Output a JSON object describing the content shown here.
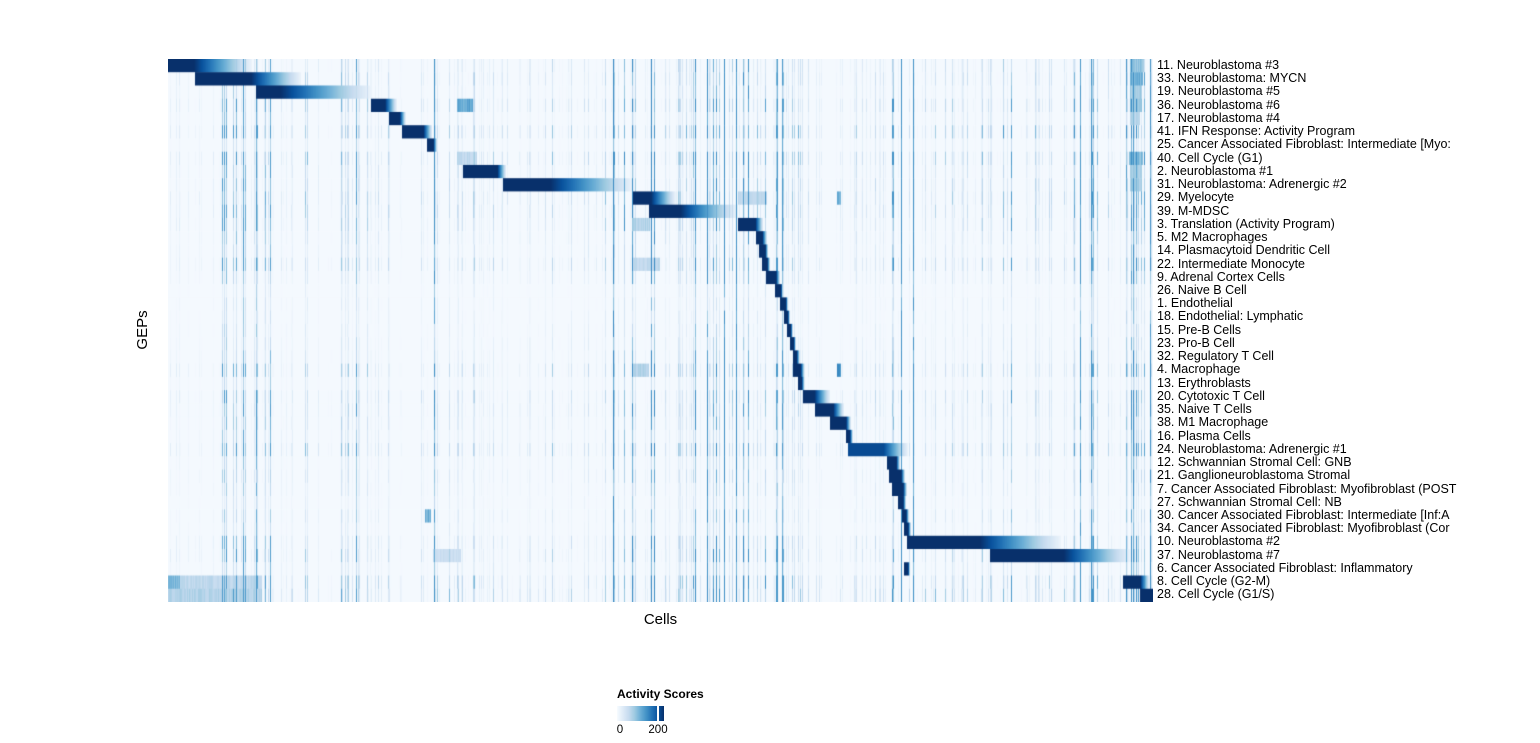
{
  "figure": {
    "y_axis_label": "GEPs",
    "x_axis_label": "Cells",
    "legend": {
      "title": "Activity Scores",
      "min_label": "0",
      "max_label": "200"
    }
  },
  "chart_data": {
    "type": "heatmap",
    "title": "",
    "xlabel": "Cells",
    "ylabel": "GEPs",
    "legend_title": "Activity Scores",
    "value_range": [
      0,
      200
    ],
    "legend_tick_values": [
      "0",
      "200"
    ],
    "n_rows": 41,
    "colormap": "Blues (white to dark navy)",
    "color_min": "#f7fbff",
    "color_max": "#08306b",
    "color_stops": [
      "#f7fbff",
      "#deebf7",
      "#c6dbef",
      "#9ecae1",
      "#6baed6",
      "#4292c6",
      "#2171b5",
      "#08519c",
      "#08306b"
    ],
    "description": "Cells (columns) sorted by assigned gene expression program; each GEP row shows a dark activity block along the diagonal. block = [start, dark_end, fade_end] fractions of x-axis; peak activity ~200+.",
    "noise_hotspots": [
      [
        0.05,
        0.06,
        0.8
      ],
      [
        0.155,
        0.04,
        0.6
      ],
      [
        0.268,
        0.006,
        1.6
      ],
      [
        0.375,
        0.005,
        1.2
      ],
      [
        0.448,
        0.05,
        2.0
      ],
      [
        0.53,
        0.08,
        1.7
      ],
      [
        0.607,
        0.02,
        1.0
      ],
      [
        0.678,
        0.008,
        2.0
      ],
      [
        0.728,
        0.03,
        1.5
      ],
      [
        0.84,
        0.02,
        0.9
      ],
      [
        0.91,
        0.035,
        1.3
      ],
      [
        0.973,
        0.025,
        1.7
      ]
    ],
    "rows": [
      {
        "label": "11. Neuroblastoma #3",
        "block": [
          0.0,
          0.026,
          0.085
        ],
        "noise": 0.7,
        "extras": [
          [
            0.976,
            0.014,
            0.45
          ]
        ]
      },
      {
        "label": "33. Neuroblastoma: MYCN",
        "block": [
          0.027,
          0.084,
          0.135
        ],
        "noise": 0.8,
        "extras": [
          [
            0.976,
            0.013,
            0.55
          ]
        ]
      },
      {
        "label": "19. Neuroblastoma #5",
        "block": [
          0.089,
          0.114,
          0.206
        ],
        "noise": 0.6,
        "extras": [
          [
            0.976,
            0.012,
            0.4
          ]
        ]
      },
      {
        "label": "36. Neuroblastoma #6",
        "block": [
          0.206,
          0.22,
          0.232
        ],
        "noise": 1.0,
        "extras": [
          [
            0.293,
            0.016,
            0.6
          ],
          [
            0.976,
            0.012,
            0.45
          ]
        ]
      },
      {
        "label": "17. Neuroblastoma #4",
        "block": [
          0.224,
          0.235,
          0.241
        ],
        "noise": 0.5,
        "extras": [
          [
            0.976,
            0.01,
            0.35
          ]
        ]
      },
      {
        "label": "41. IFN Response: Activity Program",
        "block": [
          0.237,
          0.259,
          0.268
        ],
        "noise": 1.2
      },
      {
        "label": "25. Cancer Associated Fibroblast: Intermediate [Myo:",
        "block": [
          0.262,
          0.269,
          0.273
        ],
        "noise": 0.4
      },
      {
        "label": "40. Cell Cycle (G1)",
        "block": null,
        "noise": 1.1,
        "extras": [
          [
            0.293,
            0.02,
            0.3
          ],
          [
            0.975,
            0.014,
            0.5
          ]
        ]
      },
      {
        "label": "2. Neuroblastoma #1",
        "block": [
          0.299,
          0.334,
          0.343
        ],
        "noise": 0.7,
        "extras": [
          [
            0.976,
            0.012,
            0.4
          ]
        ]
      },
      {
        "label": "31. Neuroblastoma: Adrenergic #2",
        "block": [
          0.34,
          0.388,
          0.472
        ],
        "noise": 0.8,
        "extras": [
          [
            0.976,
            0.012,
            0.4
          ]
        ]
      },
      {
        "label": "29. Myelocyte",
        "block": [
          0.472,
          0.49,
          0.515
        ],
        "noise": 1.0,
        "extras": [
          [
            0.578,
            0.03,
            0.3
          ],
          [
            0.679,
            0.004,
            0.6
          ]
        ]
      },
      {
        "label": "39. M-MDSC",
        "block": [
          0.488,
          0.52,
          0.578
        ],
        "noise": 0.9
      },
      {
        "label": "3. Translation (Activity Program)",
        "block": [
          0.578,
          0.596,
          0.604
        ],
        "noise": 0.8,
        "extras": [
          [
            0.472,
            0.017,
            0.35
          ]
        ]
      },
      {
        "label": "5. M2 Macrophages",
        "block": [
          0.596,
          0.603,
          0.608
        ],
        "noise": 0.6
      },
      {
        "label": "14. Plasmacytoid Dendritic Cell",
        "block": [
          0.6,
          0.606,
          0.609
        ],
        "noise": 0.5
      },
      {
        "label": "22. Intermediate Monocyte",
        "block": [
          0.603,
          0.608,
          0.611
        ],
        "noise": 0.9,
        "extras": [
          [
            0.472,
            0.027,
            0.3
          ]
        ]
      },
      {
        "label": "9. Adrenal Cortex Cells",
        "block": [
          0.607,
          0.617,
          0.621
        ],
        "noise": 0.5
      },
      {
        "label": "26. Naive B Cell",
        "block": [
          0.616,
          0.622,
          0.624
        ],
        "noise": 0.25
      },
      {
        "label": "1. Endothelial",
        "block": [
          0.621,
          0.627,
          0.629
        ],
        "noise": 0.3
      },
      {
        "label": "18. Endothelial: Lymphatic",
        "block": [
          0.625,
          0.629,
          0.631
        ],
        "noise": 0.3
      },
      {
        "label": "15. Pre-B Cells",
        "block": [
          0.628,
          0.632,
          0.634
        ],
        "noise": 0.35
      },
      {
        "label": "23. Pro-B Cell",
        "block": [
          0.631,
          0.635,
          0.637
        ],
        "noise": 0.4
      },
      {
        "label": "32. Regulatory T Cell",
        "block": [
          0.634,
          0.638,
          0.641
        ],
        "noise": 0.45
      },
      {
        "label": "4. Macrophage",
        "block": [
          0.634,
          0.642,
          0.646
        ],
        "noise": 0.9,
        "extras": [
          [
            0.472,
            0.016,
            0.35
          ],
          [
            0.679,
            0.004,
            0.7
          ]
        ]
      },
      {
        "label": "13. Erythroblasts",
        "block": [
          0.639,
          0.643,
          0.646
        ],
        "noise": 0.35
      },
      {
        "label": "20. Cytotoxic T Cell",
        "block": [
          0.644,
          0.656,
          0.672
        ],
        "noise": 0.8
      },
      {
        "label": "35. Naive T Cells",
        "block": [
          0.656,
          0.675,
          0.686
        ],
        "noise": 0.7
      },
      {
        "label": "38. M1 Macrophage",
        "block": [
          0.672,
          0.688,
          0.693
        ],
        "noise": 0.6
      },
      {
        "label": "16. Plasma Cells",
        "block": [
          0.688,
          0.692,
          0.695
        ],
        "noise": 0.5
      },
      {
        "label": "24. Neuroblastoma: Adrenergic #1",
        "block": [
          0.69,
          0.726,
          0.751
        ],
        "peak": 0.9,
        "noise": 1.0
      },
      {
        "label": "12. Schwannian Stromal Cell: GNB",
        "block": [
          0.729,
          0.739,
          0.743
        ],
        "noise": 0.4
      },
      {
        "label": "21. Ganglioneuroblastoma Stromal",
        "block": [
          0.731,
          0.744,
          0.748
        ],
        "noise": 0.5
      },
      {
        "label": "7. Cancer Associated Fibroblast: Myofibroblast (POST",
        "block": [
          0.735,
          0.746,
          0.75
        ],
        "noise": 0.4
      },
      {
        "label": "27. Schwannian Stromal Cell: NB",
        "block": [
          0.741,
          0.746,
          0.749
        ],
        "noise": 0.3
      },
      {
        "label": "30. Cancer Associated Fibroblast: Intermediate [Inf:A",
        "block": [
          0.745,
          0.749,
          0.752
        ],
        "noise": 0.45,
        "extras": [
          [
            0.26,
            0.006,
            0.55
          ]
        ]
      },
      {
        "label": "34. Cancer Associated Fibroblast: Myofibroblast (Cor",
        "block": [
          0.747,
          0.751,
          0.754
        ],
        "noise": 0.35
      },
      {
        "label": "10. Neuroblastoma #2",
        "block": [
          0.75,
          0.824,
          0.906
        ],
        "noise": 0.8
      },
      {
        "label": "37. Neuroblastoma #7",
        "block": [
          0.834,
          0.909,
          0.977
        ],
        "noise": 0.9,
        "extras": [
          [
            0.269,
            0.028,
            0.25
          ]
        ]
      },
      {
        "label": "6. Cancer Associated Fibroblast: Inflammatory",
        "block": [
          0.747,
          0.751,
          0.753
        ],
        "noise": 0.5
      },
      {
        "label": "8. Cell Cycle (G2-M)",
        "block": [
          0.969,
          0.987,
          0.996
        ],
        "noise": 1.2,
        "extras": [
          [
            0.0,
            0.012,
            0.5
          ],
          [
            0.0,
            0.095,
            0.3
          ]
        ]
      },
      {
        "label": "28. Cell Cycle (G1/S)",
        "block": [
          0.986,
          1.0,
          1.0
        ],
        "noise": 1.3,
        "extras": [
          [
            0.0,
            0.095,
            0.35
          ]
        ]
      }
    ]
  }
}
